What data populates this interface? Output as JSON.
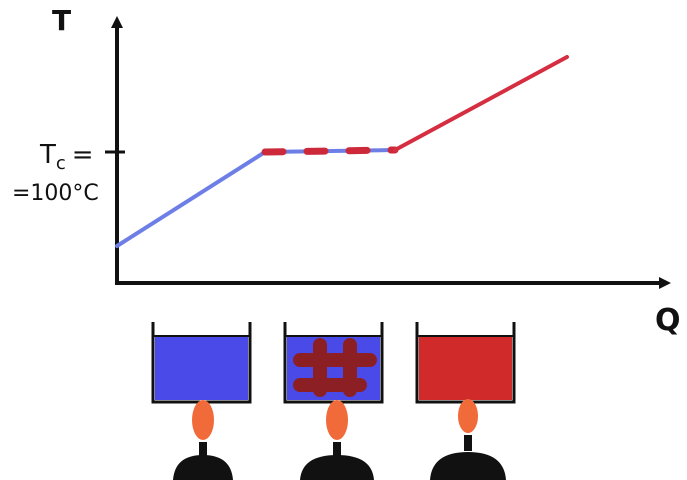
{
  "axes": {
    "y_label": "T",
    "x_label": "Q"
  },
  "critical_label": {
    "symbol": "T",
    "subscript": "c",
    "suffix": "="
  },
  "critical_value": "=100°C"
}
